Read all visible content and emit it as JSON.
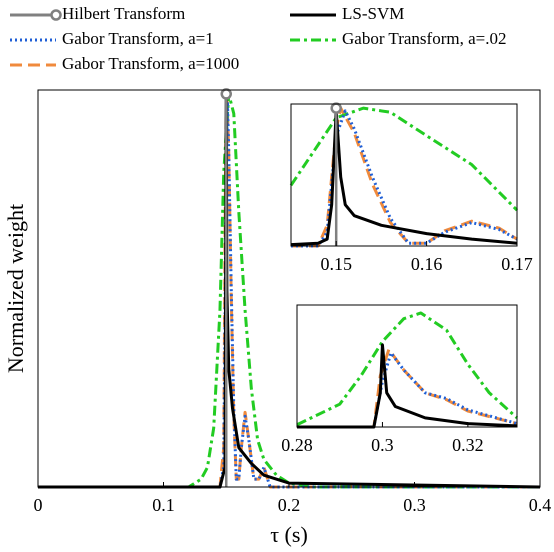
{
  "chart_data": [
    {
      "type": "line",
      "xlabel": "τ (s)",
      "ylabel": "Normalized weight",
      "xlim": [
        0,
        0.4
      ],
      "xticks": [
        0,
        0.1,
        0.2,
        0.3,
        0.4
      ],
      "ylim": [
        0,
        1.01
      ],
      "legend": "top",
      "series": [
        {
          "name": "Hilbert Transform",
          "color": "#808080",
          "style": "stem",
          "x": [
            0.15
          ],
          "values": [
            1
          ]
        },
        {
          "name": "LS-SVM",
          "color": "#000000",
          "style": "solid",
          "x": [
            0,
            0.145,
            0.149,
            0.15,
            0.1505,
            0.152,
            0.155,
            0.16,
            0.17,
            0.18,
            0.2,
            0.4
          ],
          "values": [
            0,
            0,
            0.05,
            1,
            0.5,
            0.3,
            0.2,
            0.1,
            0.06,
            0.03,
            0.01,
            0
          ]
        },
        {
          "name": "Gabor Transform, a=1",
          "color": "#1f5fd6",
          "style": "dotted",
          "x": [
            0,
            0.145,
            0.148,
            0.15,
            0.151,
            0.152,
            0.154,
            0.156,
            0.158,
            0.16,
            0.162,
            0.165,
            0.168,
            0.172,
            0.176,
            0.18,
            0.185,
            0.4
          ],
          "values": [
            0,
            0,
            0.05,
            0.8,
            0.98,
            0.85,
            0.5,
            0.2,
            0.02,
            0.02,
            0.1,
            0.18,
            0.12,
            0.02,
            0.02,
            0.05,
            0,
            0
          ]
        },
        {
          "name": "Gabor Transform, a=.02",
          "color": "#22cc22",
          "style": "dashdot",
          "x": [
            0,
            0.12,
            0.13,
            0.135,
            0.14,
            0.145,
            0.148,
            0.152,
            0.156,
            0.16,
            0.165,
            0.17,
            0.175,
            0.18,
            0.19,
            0.2,
            0.22,
            0.4
          ],
          "values": [
            0,
            0,
            0.02,
            0.05,
            0.15,
            0.45,
            0.8,
            1,
            0.95,
            0.7,
            0.45,
            0.25,
            0.12,
            0.07,
            0.03,
            0.01,
            0,
            0
          ]
        },
        {
          "name": "Gabor Transform, a=1000",
          "color": "#f08a3c",
          "style": "dashed",
          "x": [
            0,
            0.145,
            0.148,
            0.1495,
            0.1505,
            0.152,
            0.154,
            0.156,
            0.158,
            0.16,
            0.162,
            0.165,
            0.168,
            0.172,
            0.176,
            0.18,
            0.185,
            0.4
          ],
          "values": [
            0,
            0,
            0.1,
            0.85,
            1,
            0.85,
            0.48,
            0.18,
            0.02,
            0.02,
            0.1,
            0.19,
            0.12,
            0.02,
            0.02,
            0.05,
            0,
            0
          ]
        }
      ]
    },
    {
      "type": "line",
      "xlim": [
        0.145,
        0.17
      ],
      "xticks": [
        0.15,
        0.16,
        0.17
      ],
      "ylim": [
        0,
        1.03
      ],
      "series": [
        {
          "color": "#808080",
          "style": "stem",
          "x": [
            0.15
          ],
          "values": [
            1
          ]
        },
        {
          "color": "#000000",
          "style": "solid",
          "x": [
            0.145,
            0.148,
            0.149,
            0.1495,
            0.15,
            0.1505,
            0.151,
            0.152,
            0.155,
            0.16,
            0.165,
            0.17
          ],
          "values": [
            0.01,
            0.02,
            0.05,
            0.3,
            0.98,
            0.5,
            0.3,
            0.22,
            0.15,
            0.09,
            0.05,
            0.02
          ]
        },
        {
          "color": "#1f5fd6",
          "style": "dotted",
          "x": [
            0.145,
            0.148,
            0.149,
            0.15,
            0.151,
            0.152,
            0.154,
            0.156,
            0.158,
            0.16,
            0.162,
            0.165,
            0.168,
            0.17
          ],
          "values": [
            0,
            0,
            0.1,
            0.8,
            0.98,
            0.85,
            0.5,
            0.2,
            0.02,
            0.02,
            0.1,
            0.17,
            0.12,
            0.05
          ]
        },
        {
          "color": "#22cc22",
          "style": "dashdot",
          "x": [
            0.145,
            0.15,
            0.153,
            0.156,
            0.16,
            0.165,
            0.17
          ],
          "values": [
            0.44,
            0.93,
            1,
            0.97,
            0.8,
            0.59,
            0.26
          ]
        },
        {
          "color": "#f08a3c",
          "style": "dashed",
          "x": [
            0.145,
            0.148,
            0.149,
            0.15,
            0.1505,
            0.152,
            0.154,
            0.156,
            0.158,
            0.16,
            0.162,
            0.165,
            0.168,
            0.17
          ],
          "values": [
            0,
            0,
            0.15,
            0.85,
            1,
            0.82,
            0.45,
            0.17,
            0.02,
            0.02,
            0.11,
            0.18,
            0.13,
            0.05
          ]
        }
      ]
    },
    {
      "type": "line",
      "xlim": [
        0.28,
        0.3315
      ],
      "xticks": [
        0.28,
        0.3,
        0.32
      ],
      "ylim": [
        0,
        1.07
      ],
      "series": [
        {
          "color": "#000000",
          "style": "solid",
          "x": [
            0.28,
            0.298,
            0.2995,
            0.3,
            0.301,
            0.303,
            0.31,
            0.32,
            0.3315
          ],
          "values": [
            0,
            0,
            0.3,
            0.72,
            0.3,
            0.18,
            0.08,
            0.03,
            0.01
          ]
        },
        {
          "color": "#1f5fd6",
          "style": "dotted",
          "x": [
            0.28,
            0.298,
            0.3,
            0.302,
            0.305,
            0.31,
            0.315,
            0.32,
            0.3315
          ],
          "values": [
            0,
            0,
            0.4,
            0.65,
            0.5,
            0.3,
            0.25,
            0.15,
            0.03
          ]
        },
        {
          "color": "#22cc22",
          "style": "dashdot",
          "x": [
            0.28,
            0.29,
            0.295,
            0.3,
            0.305,
            0.309,
            0.315,
            0.32,
            0.325,
            0.3315
          ],
          "values": [
            0.02,
            0.2,
            0.45,
            0.75,
            0.95,
            1,
            0.85,
            0.55,
            0.3,
            0.08
          ]
        },
        {
          "color": "#f08a3c",
          "style": "dashed",
          "x": [
            0.28,
            0.298,
            0.2995,
            0.3015,
            0.305,
            0.31,
            0.315,
            0.32,
            0.3315
          ],
          "values": [
            0,
            0,
            0.45,
            0.68,
            0.5,
            0.3,
            0.24,
            0.14,
            0.03
          ]
        }
      ]
    }
  ]
}
